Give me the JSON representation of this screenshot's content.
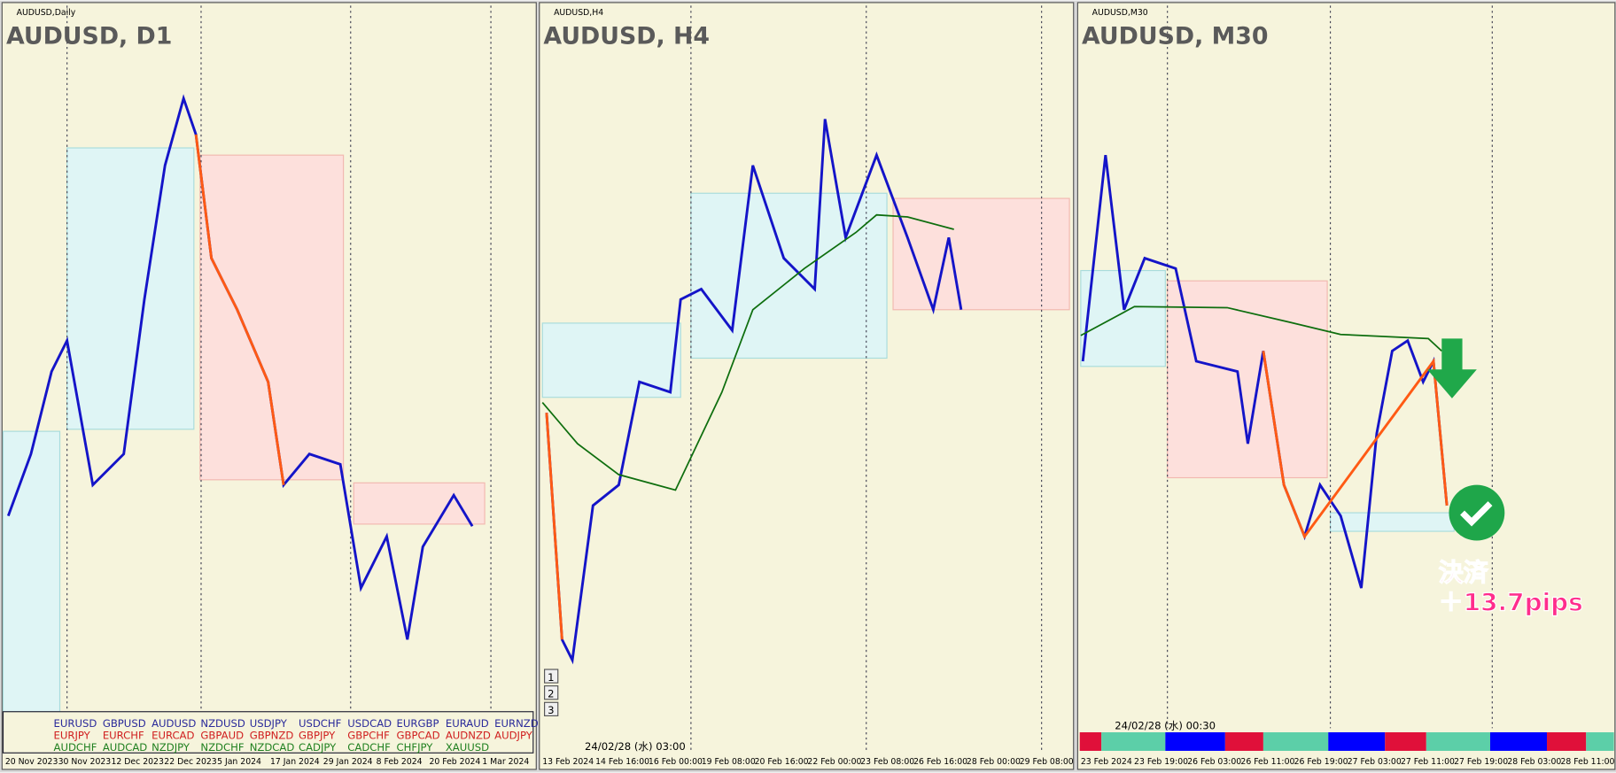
{
  "panels": [
    {
      "window_title": "AUDUSD,Daily",
      "chart_title": "AUDUSD, D1",
      "x_labels": [
        "20 Nov 2023",
        "30 Nov 2023",
        "12 Dec 2023",
        "22 Dec 2023",
        "5 Jan 2024",
        "17 Jan 2024",
        "29 Jan 2024",
        "8 Feb 2024",
        "20 Feb 2024",
        "1 Mar 2024"
      ]
    },
    {
      "window_title": "AUDUSD,H4",
      "chart_title": "AUDUSD, H4",
      "x_labels": [
        "13 Feb 2024",
        "14 Feb 16:00",
        "16 Feb 00:00",
        "19 Feb 08:00",
        "20 Feb 16:00",
        "22 Feb 00:00",
        "23 Feb 08:00",
        "26 Feb 16:00",
        "28 Feb 00:00",
        "29 Feb 08:00"
      ],
      "buttons": [
        "1",
        "2",
        "3"
      ],
      "timestamp": "24/02/28 (水) 03:00"
    },
    {
      "window_title": "AUDUSD,M30",
      "chart_title": "AUDUSD, M30",
      "x_labels": [
        "23 Feb 2024",
        "23 Feb 19:00",
        "26 Feb 03:00",
        "26 Feb 11:00",
        "26 Feb 19:00",
        "27 Feb 03:00",
        "27 Feb 11:00",
        "27 Feb 19:00",
        "28 Feb 03:00",
        "28 Feb 11:00"
      ],
      "timestamp": "24/02/28 (水) 00:30"
    }
  ],
  "symbols": [
    [
      "EURUSD",
      "GBPUSD",
      "AUDUSD",
      "NZDUSD",
      "USDJPY",
      "USDCHF",
      "USDCAD",
      "EURGBP",
      "EURAUD",
      "EURNZD"
    ],
    [
      "EURJPY",
      "EURCHF",
      "EURCAD",
      "GBPAUD",
      "GBPNZD",
      "GBPJPY",
      "GBPCHF",
      "GBPCAD",
      "AUDNZD",
      "AUDJPY"
    ],
    [
      "AUDCHF",
      "AUDCAD",
      "NZDJPY",
      "NZDCHF",
      "NZDCAD",
      "CADJPY",
      "CADCHF",
      "CHFJPY",
      "XAUUSD"
    ]
  ],
  "annotation": {
    "line1": "決済",
    "line2": "＋13.7pips"
  }
}
